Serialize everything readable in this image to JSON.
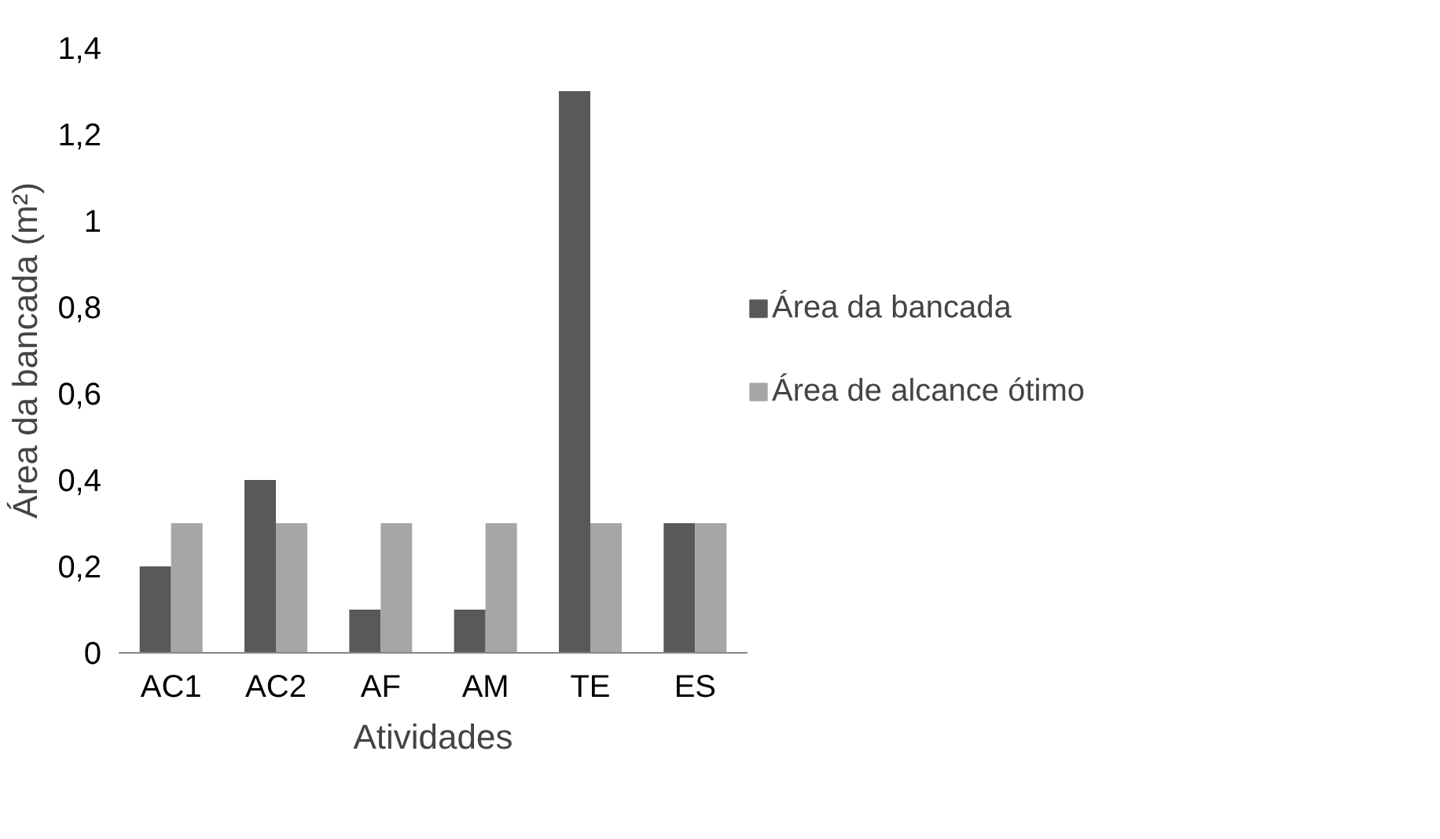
{
  "chart_data": {
    "type": "bar",
    "xlabel": "Atividades",
    "ylabel": "Área da bancada (m²)",
    "categories": [
      "AC1",
      "AC2",
      "AF",
      "AM",
      "TE",
      "ES"
    ],
    "series": [
      {
        "name": "Área da bancada",
        "color": "#595959",
        "values": [
          0.2,
          0.4,
          0.1,
          0.1,
          1.3,
          0.3
        ]
      },
      {
        "name": "Área de alcance ótimo",
        "color": "#a6a6a6",
        "values": [
          0.3,
          0.3,
          0.3,
          0.3,
          0.3,
          0.3
        ]
      }
    ],
    "ylim": [
      0,
      1.4
    ],
    "yticks": [
      0,
      {
        "value": 0.2,
        "label": "0,2"
      },
      {
        "value": 0.4,
        "label": "0,4"
      },
      {
        "value": 0.6,
        "label": "0,6"
      },
      {
        "value": 0.8,
        "label": "0,8"
      },
      1,
      {
        "value": 1.2,
        "label": "1,2"
      },
      {
        "value": 1.4,
        "label": "1,4"
      }
    ],
    "grid": false,
    "legend": "right"
  }
}
